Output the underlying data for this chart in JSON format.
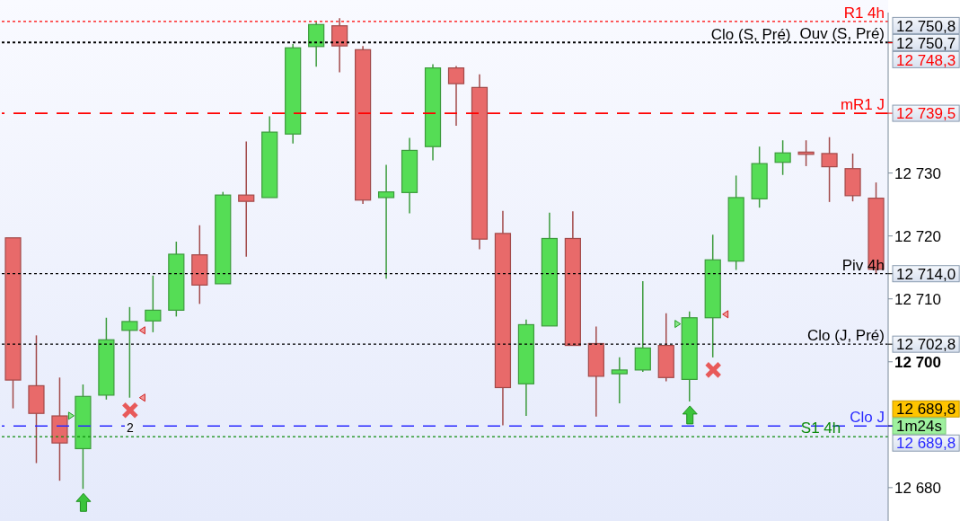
{
  "chart_data": {
    "type": "candlestick",
    "categories": [
      null,
      null,
      null,
      null,
      null,
      null,
      null,
      null,
      null,
      null,
      null,
      null,
      null,
      null,
      null,
      null,
      null,
      null,
      null,
      null,
      null,
      null,
      null,
      null,
      null,
      null,
      null,
      null,
      null,
      null,
      null,
      null,
      null,
      null,
      null,
      null,
      null,
      null
    ],
    "ohlc": [
      [
        12719.7,
        12719.7,
        12692.6,
        12697.1
      ],
      [
        12696.2,
        12704.2,
        12683.9,
        12691.8
      ],
      [
        12691.4,
        12697.5,
        12681.1,
        12687.1
      ],
      [
        12686.2,
        12696.4,
        12679.8,
        12694.5
      ],
      [
        12694.7,
        12707.0,
        12694.0,
        12703.5
      ],
      [
        12705.0,
        12708.7,
        12694.3,
        12706.4
      ],
      [
        12706.5,
        12713.7,
        12704.7,
        12708.2
      ],
      [
        12708.2,
        12719.1,
        12707.2,
        12717.1
      ],
      [
        12717.0,
        12721.7,
        12709.2,
        12712.2
      ],
      [
        12712.4,
        12727.0,
        12712.4,
        12726.5
      ],
      [
        12726.5,
        12735.0,
        12716.7,
        12725.5
      ],
      [
        12726.1,
        12739.0,
        12726.1,
        12736.5
      ],
      [
        12736.2,
        12750.5,
        12734.7,
        12749.9
      ],
      [
        12750.1,
        12754.0,
        12746.9,
        12753.6
      ],
      [
        12753.4,
        12754.6,
        12746.0,
        12750.2
      ],
      [
        12749.6,
        12750.2,
        12725.1,
        12725.7
      ],
      [
        12726.1,
        12731.3,
        12713.2,
        12727.0
      ],
      [
        12726.9,
        12735.6,
        12723.6,
        12733.6
      ],
      [
        12734.2,
        12747.3,
        12732.0,
        12746.7
      ],
      [
        12746.7,
        12747.0,
        12737.5,
        12744.2
      ],
      [
        12743.6,
        12745.7,
        12717.9,
        12719.5
      ],
      [
        12720.4,
        12724.0,
        12689.9,
        12695.9
      ],
      [
        12696.5,
        12706.7,
        12691.4,
        12705.9
      ],
      [
        12705.7,
        12723.7,
        12705.7,
        12719.6
      ],
      [
        12719.6,
        12723.9,
        12702.6,
        12702.6
      ],
      [
        12702.9,
        12705.6,
        12691.3,
        12697.7
      ],
      [
        12698.1,
        12700.7,
        12693.4,
        12698.7
      ],
      [
        12698.7,
        12712.8,
        12698.4,
        12702.2
      ],
      [
        12702.6,
        12707.7,
        12696.9,
        12697.5
      ],
      [
        12697.2,
        12708.0,
        12693.7,
        12707.0
      ],
      [
        12707.0,
        12720.2,
        12700.7,
        12716.2
      ],
      [
        12716.0,
        12729.6,
        12714.6,
        12726.1
      ],
      [
        12725.9,
        12734.2,
        12724.5,
        12731.5
      ],
      [
        12731.7,
        12735.2,
        12729.7,
        12733.2
      ],
      [
        12733.2,
        12735.2,
        12731.1,
        12733.1
      ],
      [
        12733.1,
        12735.7,
        12725.4,
        12731.0
      ],
      [
        12730.7,
        12733.1,
        12725.5,
        12726.4
      ],
      [
        12726.0,
        12728.5,
        12714.0,
        12714.7
      ]
    ],
    "colors": [
      "#e86a6a",
      "#e86a6a",
      "#e86a6a",
      "#55dd55",
      "#55dd55",
      "#55dd55",
      "#55dd55",
      "#55dd55",
      "#e86a6a",
      "#55dd55",
      "#e86a6a",
      "#55dd55",
      "#55dd55",
      "#55dd55",
      "#e86a6a",
      "#e86a6a",
      "#55dd55",
      "#55dd55",
      "#55dd55",
      "#e86a6a",
      "#e86a6a",
      "#e86a6a",
      "#55dd55",
      "#55dd55",
      "#e86a6a",
      "#e86a6a",
      "#55dd55",
      "#55dd55",
      "#e86a6a",
      "#55dd55",
      "#55dd55",
      "#55dd55",
      "#55dd55",
      "#55dd55",
      "#e86a6a",
      "#e86a6a",
      "#e86a6a",
      "#e86a6a"
    ],
    "ylim": [
      12674.7,
      12755.5
    ],
    "yticks": [
      {
        "value": 12680,
        "label": "12 680"
      },
      {
        "value": 12700,
        "label": "12 700"
      },
      {
        "value": 12710,
        "label": "12 710"
      },
      {
        "value": 12720,
        "label": "12 720"
      },
      {
        "value": 12730,
        "label": "12 730"
      }
    ],
    "tick_labels": "y",
    "ref_lines": [
      {
        "axis": "y",
        "value": 12754.1,
        "label": "R1 4h",
        "color": "#ff0000",
        "line_style": "dotted"
      },
      {
        "axis": "y",
        "value": 12750.8,
        "label": "Ouv (S, Pré)",
        "color": "#000000",
        "line_style": "dotted"
      },
      {
        "axis": "y",
        "value": 12750.7,
        "label": "Clo (S, Pré)",
        "color": "#000000",
        "line_style": "dotted"
      },
      {
        "axis": "y",
        "value": 12739.5,
        "label": "mR1 J",
        "color": "#ff0000",
        "line_style": "dashed"
      },
      {
        "axis": "y",
        "value": 12714.0,
        "label": "Piv 4h",
        "color": "#000000",
        "line_style": "dotted"
      },
      {
        "axis": "y",
        "value": 12702.8,
        "label": "Clo (J, Pré)",
        "color": "#000000",
        "line_style": "dotted"
      },
      {
        "axis": "y",
        "value": 12689.8,
        "label": "Clo J",
        "color": "#2a2aff",
        "line_style": "dashed"
      },
      {
        "axis": "y",
        "value": 12688.1,
        "label": "S1 4h",
        "color": "#0a8a0a",
        "line_style": "dotted"
      }
    ],
    "annotations": [
      "12 750,8",
      "12 750,7",
      "12 748,3",
      "12 739,5",
      "12 714,0",
      "12 702,8",
      "12 689,8",
      "1m24s",
      "12 689,8",
      "2"
    ]
  }
}
